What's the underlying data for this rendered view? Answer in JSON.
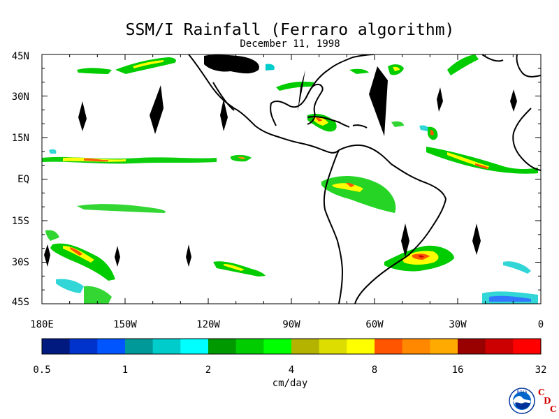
{
  "title": "SSM/I Rainfall (Ferraro algorithm)",
  "subtitle": "December 11, 1998",
  "lat_labels": [
    "45N",
    "30N",
    "15N",
    "EQ",
    "15S",
    "30S",
    "45S"
  ],
  "lon_labels": [
    "180E",
    "150W",
    "120W",
    "90W",
    "60W",
    "30W",
    "0"
  ],
  "colorbar": {
    "labels": [
      "0.5",
      "1",
      "2",
      "4",
      "8",
      "16",
      "32"
    ],
    "units": "cm/day",
    "colors": [
      "#001a80",
      "#0033cc",
      "#0055ff",
      "#009999",
      "#00cccc",
      "#00ffff",
      "#009900",
      "#00cc00",
      "#00ff00",
      "#b3b300",
      "#dddd00",
      "#ffff00",
      "#ff5500",
      "#ff8800",
      "#ffaa00",
      "#990000",
      "#cc0000",
      "#ff0000"
    ]
  },
  "logo": {
    "text": "NOAA",
    "cdc_letters": [
      "C",
      "D",
      "C"
    ]
  }
}
